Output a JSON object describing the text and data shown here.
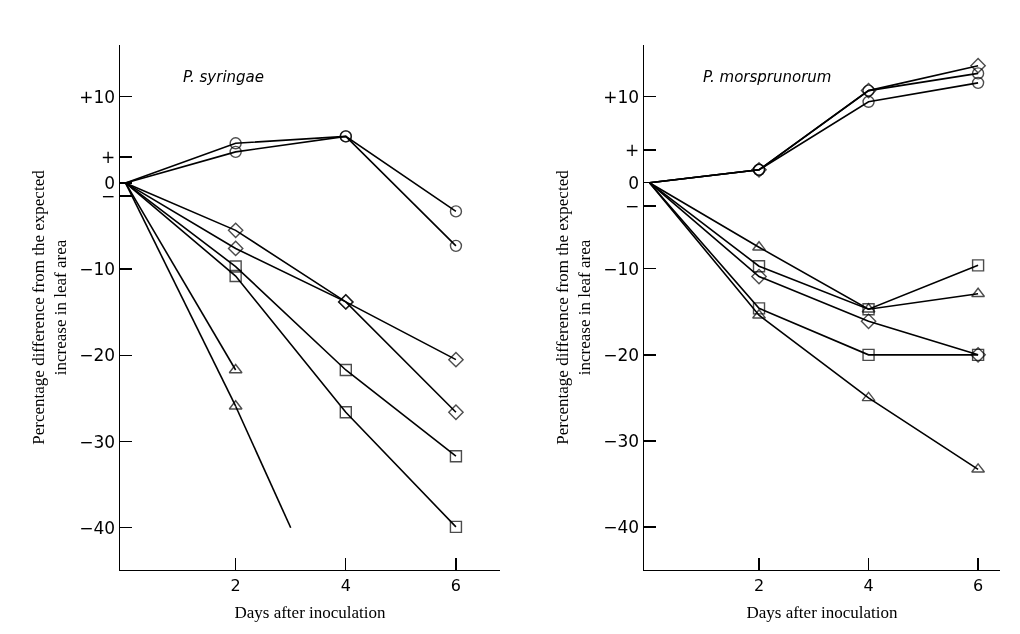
{
  "chart_data": [
    {
      "type": "line",
      "title": "P. syringae",
      "xlabel": "Days after inoculation",
      "ylabel": "Percentage difference from the expected\nincrease in leaf area",
      "grid": false,
      "line_style": "solid",
      "xlim": [
        -0.1,
        6.8
      ],
      "ylim": [
        -44.9,
        16
      ],
      "xticks": [
        2,
        4,
        6
      ],
      "yticks": [
        {
          "value": 10,
          "label": "+10"
        },
        {
          "value": 3,
          "label": "+"
        },
        0,
        {
          "value": -1.5,
          "label": "−"
        },
        {
          "value": -10,
          "label": "−10"
        },
        {
          "value": -20,
          "label": "−20"
        },
        {
          "value": -30,
          "label": "−30"
        },
        {
          "value": -40,
          "label": "−40"
        }
      ],
      "x": [
        0,
        2,
        4,
        6
      ],
      "series": [
        {
          "color": "#000000",
          "marker": "circle",
          "values": [
            0,
            4.6,
            5.4,
            -3.3
          ]
        },
        {
          "color": "#000000",
          "marker": "circle",
          "values": [
            0,
            3.6,
            5.4,
            -7.3
          ]
        },
        {
          "color": "#000000",
          "marker": "diamond",
          "values": [
            0,
            -5.5,
            -13.8,
            -20.5
          ]
        },
        {
          "color": "#000000",
          "marker": "diamond",
          "values": [
            0,
            -7.6,
            -13.8,
            -26.6
          ]
        },
        {
          "color": "#000000",
          "marker": "square",
          "values": [
            0,
            -9.7,
            -21.7,
            -31.7
          ]
        },
        {
          "color": "#000000",
          "marker": "square",
          "values": [
            0,
            -10.8,
            -26.6,
            -39.9
          ]
        },
        {
          "color": "#000000",
          "marker": "triangle",
          "x": [
            0,
            2
          ],
          "values": [
            0,
            -21.7
          ]
        },
        {
          "color": "#000000",
          "marker": "triangle",
          "x": [
            0,
            2
          ],
          "values": [
            0,
            -25.9
          ]
        },
        {
          "color": "#000000",
          "marker": "none",
          "x": [
            2,
            3
          ],
          "values": [
            -25.9,
            -40
          ]
        }
      ]
    },
    {
      "type": "line",
      "title": "P. morsprunorum",
      "xlabel": "Days after inoculation",
      "ylabel": "Percentage difference from the expected\nincrease in leaf area",
      "grid": false,
      "line_style": "solid",
      "xlim": [
        -0.1,
        6.4
      ],
      "ylim": [
        -45,
        16
      ],
      "xticks": [
        2,
        4,
        6
      ],
      "yticks": [
        {
          "value": 10,
          "label": "+10"
        },
        {
          "value": 3.8,
          "label": "+"
        },
        0,
        {
          "value": -2.7,
          "label": "−"
        },
        {
          "value": -10,
          "label": "−10"
        },
        {
          "value": -20,
          "label": "−20"
        },
        {
          "value": -30,
          "label": "−30"
        },
        {
          "value": -40,
          "label": "−40"
        }
      ],
      "x": [
        0,
        2,
        4,
        6
      ],
      "series": [
        {
          "color": "#000000",
          "marker": "diamond",
          "values": [
            0,
            1.5,
            10.7,
            13.6
          ]
        },
        {
          "color": "#000000",
          "marker": "circle",
          "values": [
            0,
            1.5,
            10.7,
            12.7
          ]
        },
        {
          "color": "#000000",
          "marker": "circle",
          "values": [
            0,
            1.5,
            9.4,
            11.6
          ]
        },
        {
          "color": "#000000",
          "marker": "triangle",
          "values": [
            0,
            -7.5,
            -14.7,
            -12.9
          ]
        },
        {
          "color": "#000000",
          "marker": "square",
          "values": [
            0,
            -9.7,
            -14.7,
            -9.6
          ]
        },
        {
          "color": "#000000",
          "marker": "diamond",
          "values": [
            0,
            -10.9,
            -16.1,
            -20
          ]
        },
        {
          "color": "#000000",
          "marker": "square",
          "values": [
            0,
            -14.6,
            -20,
            -20
          ]
        },
        {
          "color": "#000000",
          "marker": "triangle",
          "values": [
            0,
            -15.4,
            -25,
            -33.3
          ]
        }
      ]
    }
  ]
}
